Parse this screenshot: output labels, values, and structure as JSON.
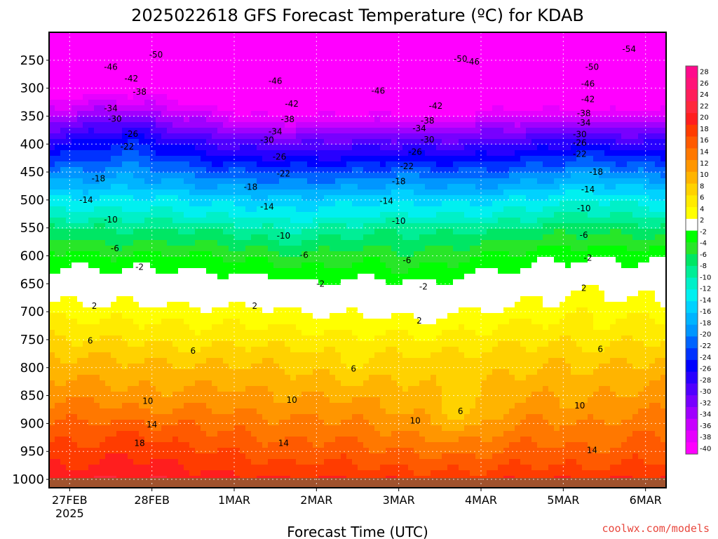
{
  "chart_data": {
    "type": "heatmap",
    "title": "2025022618 GFS Forecast Temperature (ºC) for KDAB",
    "xlabel": "Forecast Time (UTC)",
    "ylabel": "",
    "credit": "coolwx.com/models",
    "y_ticks": [
      250,
      300,
      350,
      400,
      450,
      500,
      550,
      600,
      650,
      700,
      750,
      800,
      850,
      900,
      950,
      1000
    ],
    "y_tick_labels": [
      "250",
      "300",
      "350",
      "400",
      "450",
      "500",
      "550",
      "600",
      "650",
      "700",
      "750",
      "800",
      "850",
      "900",
      "950",
      "1000"
    ],
    "ylim": [
      200,
      1015
    ],
    "x_ticks": [
      0.25,
      1.25,
      2.25,
      3.25,
      4.25,
      5.25,
      6.25,
      7.25
    ],
    "x_tick_labels": [
      "27FEB",
      "28FEB",
      "1MAR",
      "2MAR",
      "3MAR",
      "4MAR",
      "5MAR",
      "6MAR"
    ],
    "x_tick_sublabels": [
      "2025",
      "",
      "",
      "",
      "",
      "",
      "",
      ""
    ],
    "xlim": [
      0,
      7.5
    ],
    "colorbar_levels": [
      28,
      26,
      24,
      22,
      20,
      18,
      16,
      14,
      12,
      10,
      8,
      6,
      4,
      2,
      -2,
      -4,
      -6,
      -8,
      -10,
      -12,
      -14,
      -16,
      -18,
      -20,
      -22,
      -24,
      -26,
      -28,
      -30,
      -32,
      -34,
      -36,
      -38,
      -40
    ],
    "colorbar_colors": [
      "#ff0a8c",
      "#ff1478",
      "#ff1e5a",
      "#ff283c",
      "#ff1e1e",
      "#ff3c00",
      "#ff5a00",
      "#ff7800",
      "#ff9600",
      "#ffb400",
      "#ffd200",
      "#ffeb00",
      "#ffff00",
      "#ffffff",
      "#00ff00",
      "#28e628",
      "#00e664",
      "#00ee96",
      "#00f0c8",
      "#00f0f0",
      "#00d2ff",
      "#00b4ff",
      "#0096ff",
      "#0064ff",
      "#0032ff",
      "#0000ff",
      "#2800ff",
      "#5000ff",
      "#7800ff",
      "#a000ff",
      "#c800ff",
      "#e600ff",
      "#ff00ff"
    ],
    "ground_color": "#a0522d",
    "contours": [
      {
        "level": -54,
        "labels": [
          [
            7.05,
            230
          ]
        ]
      },
      {
        "level": -50,
        "labels": [
          [
            1.3,
            240
          ],
          [
            5.0,
            248
          ],
          [
            6.6,
            262
          ]
        ]
      },
      {
        "level": -46,
        "labels": [
          [
            0.75,
            262
          ],
          [
            2.75,
            287
          ],
          [
            4.0,
            305
          ],
          [
            5.15,
            253
          ],
          [
            6.55,
            292
          ]
        ]
      },
      {
        "level": -42,
        "labels": [
          [
            1.0,
            283
          ],
          [
            2.95,
            328
          ],
          [
            4.7,
            332
          ],
          [
            6.55,
            320
          ]
        ]
      },
      {
        "level": -38,
        "labels": [
          [
            1.1,
            307
          ],
          [
            2.9,
            356
          ],
          [
            4.6,
            358
          ],
          [
            6.5,
            345
          ]
        ]
      },
      {
        "level": -34,
        "labels": [
          [
            0.75,
            336
          ],
          [
            2.75,
            378
          ],
          [
            4.5,
            372
          ],
          [
            6.5,
            362
          ]
        ]
      },
      {
        "level": -30,
        "labels": [
          [
            0.8,
            355
          ],
          [
            2.65,
            393
          ],
          [
            4.6,
            392
          ],
          [
            6.45,
            383
          ]
        ]
      },
      {
        "level": -26,
        "labels": [
          [
            1.0,
            382
          ],
          [
            2.8,
            423
          ],
          [
            4.45,
            414
          ],
          [
            6.45,
            398
          ]
        ]
      },
      {
        "level": -22,
        "labels": [
          [
            0.95,
            405
          ],
          [
            2.85,
            453
          ],
          [
            4.35,
            440
          ],
          [
            6.45,
            418
          ]
        ]
      },
      {
        "level": -18,
        "labels": [
          [
            0.6,
            462
          ],
          [
            2.45,
            477
          ],
          [
            4.25,
            467
          ],
          [
            6.65,
            450
          ]
        ]
      },
      {
        "level": -14,
        "labels": [
          [
            0.45,
            500
          ],
          [
            2.65,
            512
          ],
          [
            4.1,
            502
          ],
          [
            6.55,
            481
          ]
        ]
      },
      {
        "level": -10,
        "labels": [
          [
            0.75,
            535
          ],
          [
            2.85,
            564
          ],
          [
            4.25,
            538
          ],
          [
            6.5,
            515
          ]
        ]
      },
      {
        "level": -6,
        "labels": [
          [
            0.8,
            587
          ],
          [
            3.1,
            599
          ],
          [
            4.35,
            608
          ],
          [
            6.5,
            563
          ]
        ]
      },
      {
        "level": -2,
        "labels": [
          [
            1.1,
            620
          ],
          [
            3.3,
            650
          ],
          [
            4.55,
            655
          ],
          [
            6.55,
            604
          ]
        ]
      },
      {
        "level": 2,
        "labels": [
          [
            0.55,
            690
          ],
          [
            2.5,
            690
          ],
          [
            4.5,
            716
          ],
          [
            6.5,
            658
          ]
        ]
      },
      {
        "level": 6,
        "labels": [
          [
            0.5,
            752
          ],
          [
            1.75,
            770
          ],
          [
            3.7,
            802
          ],
          [
            5.0,
            878
          ],
          [
            6.7,
            767
          ]
        ]
      },
      {
        "level": 10,
        "labels": [
          [
            1.2,
            860
          ],
          [
            2.95,
            858
          ],
          [
            4.45,
            895
          ],
          [
            6.45,
            868
          ]
        ]
      },
      {
        "level": 14,
        "labels": [
          [
            1.25,
            902
          ],
          [
            2.85,
            935
          ],
          [
            6.6,
            948
          ]
        ]
      },
      {
        "level": 18,
        "labels": [
          [
            1.1,
            935
          ]
        ]
      }
    ]
  }
}
